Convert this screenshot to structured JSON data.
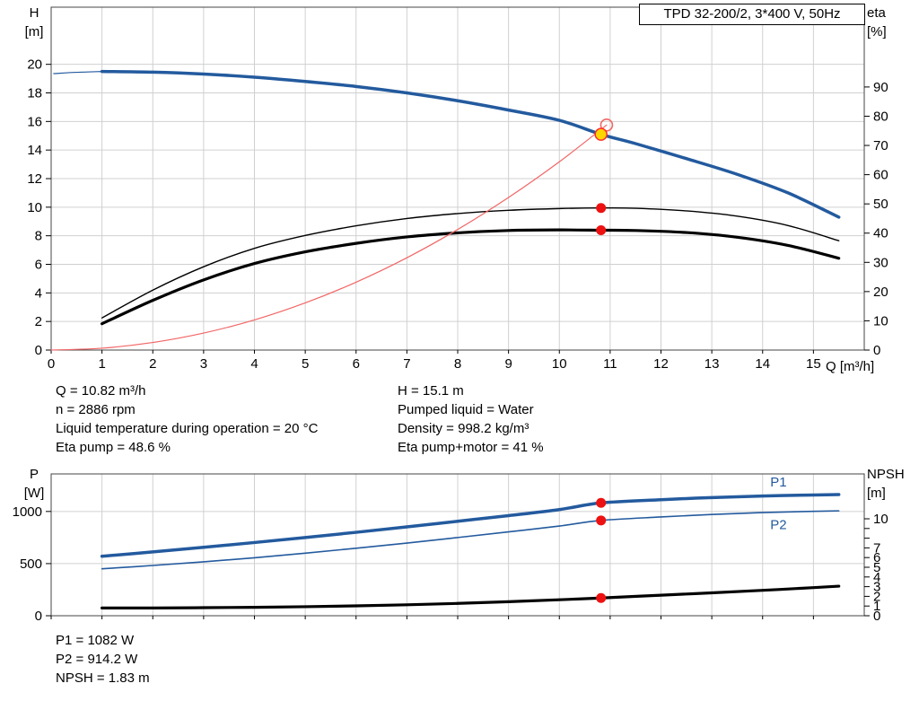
{
  "title_box": "TPD 32-200/2, 3*400 V, 50Hz",
  "axis_headers": {
    "top_left": [
      "H",
      "[m]"
    ],
    "top_right": [
      "eta",
      "[%]"
    ],
    "x": "Q [m³/h]",
    "bottom_left": [
      "P",
      "[W]"
    ],
    "bottom_right": [
      "NPSH",
      "[m]"
    ]
  },
  "info": {
    "col1": [
      "Q = 10.82 m³/h",
      "n = 2886 rpm",
      "Liquid temperature during operation = 20 °C",
      "Eta pump = 48.6 %"
    ],
    "col2": [
      "H = 15.1 m",
      "Pumped liquid = Water",
      "Density = 998.2 kg/m³",
      "Eta pump+motor = 41 %"
    ]
  },
  "results": [
    "P1 = 1082 W",
    "P2 = 914.2 W",
    "NPSH = 1.83 m"
  ],
  "colors": {
    "curve_blue": "#235a9e",
    "curve_black": "#000000",
    "curve_red": "#f26666",
    "dot_red": "#ee1111",
    "duty_yellow": "#ffd500",
    "grid": "#d0d0d0"
  },
  "chart_data": [
    {
      "type": "line",
      "title": "TPD 32-200/2, 3*400 V, 50Hz",
      "xlabel": "Q [m³/h]",
      "ylabel_left": "H [m]",
      "ylabel_right": "eta [%]",
      "xlim": [
        0,
        16
      ],
      "x_ticks": [
        0,
        1,
        2,
        3,
        4,
        5,
        6,
        7,
        8,
        9,
        10,
        11,
        12,
        13,
        14,
        15
      ],
      "x_tick_labels": true,
      "left": {
        "lim": [
          0,
          24
        ],
        "ticks": [
          0,
          2,
          4,
          6,
          8,
          10,
          12,
          14,
          16,
          18,
          20
        ]
      },
      "right": {
        "lim": [
          0,
          117.3
        ],
        "ticks": [
          0,
          10,
          20,
          30,
          40,
          50,
          60,
          70,
          80,
          90
        ]
      },
      "series": [
        {
          "name": "head-curve-low-flow",
          "axis": "left",
          "color": "#235a9e",
          "width": 1.2,
          "x": [
            0.05,
            0.5,
            1.0
          ],
          "y": [
            19.35,
            19.44,
            19.5
          ]
        },
        {
          "name": "head-curve",
          "axis": "left",
          "color": "#235a9e",
          "width": 3.5,
          "x": [
            1,
            2,
            3,
            4,
            5,
            6,
            7,
            8,
            9,
            10,
            10.82,
            11.5,
            12.5,
            13.5,
            14.5,
            15.5
          ],
          "y": [
            19.5,
            19.45,
            19.32,
            19.1,
            18.8,
            18.45,
            18.0,
            17.45,
            16.8,
            16.08,
            15.1,
            14.45,
            13.4,
            12.3,
            11.0,
            9.3
          ]
        },
        {
          "name": "eta-pump-curve",
          "axis": "right",
          "color": "#000000",
          "width": 1.4,
          "x": [
            1,
            2,
            3,
            4,
            5,
            6,
            7,
            8,
            9,
            10,
            10.82,
            11.5,
            12.5,
            13.5,
            14.5,
            15.5
          ],
          "y": [
            11,
            20.5,
            28.5,
            34.8,
            39.2,
            42.5,
            45.0,
            46.7,
            47.8,
            48.4,
            48.6,
            48.5,
            47.6,
            45.8,
            42.6,
            37.4
          ]
        },
        {
          "name": "eta-pump-motor-curve",
          "axis": "right",
          "color": "#000000",
          "width": 3.2,
          "x": [
            1,
            2,
            3,
            4,
            5,
            6,
            7,
            8,
            9,
            10,
            10.82,
            11.5,
            12.5,
            13.5,
            14.5,
            15.5
          ],
          "y": [
            9,
            17,
            24,
            29.6,
            33.6,
            36.5,
            38.7,
            40.1,
            40.9,
            41.1,
            41.0,
            40.9,
            40.2,
            38.6,
            35.8,
            31.4
          ]
        },
        {
          "name": "system-curve",
          "axis": "left",
          "color": "#f26666",
          "width": 1.2,
          "x": [
            0,
            1,
            2,
            3,
            4,
            5,
            6,
            7,
            8,
            9,
            10,
            10.93
          ],
          "y": [
            0,
            0.13,
            0.53,
            1.19,
            2.11,
            3.3,
            4.75,
            6.46,
            8.44,
            10.68,
            13.18,
            15.75
          ]
        }
      ],
      "markers": [
        {
          "name": "requested-duty-point",
          "x": 10.93,
          "y": 15.75,
          "axis": "left",
          "r": 6.5,
          "fill": "none",
          "stroke": "#f26666",
          "sw": 1.6
        },
        {
          "name": "duty-point",
          "x": 10.82,
          "y": 15.1,
          "axis": "left",
          "r": 6.5,
          "fill": "#ffd500",
          "stroke": "#ff2a2a",
          "sw": 1.5
        },
        {
          "name": "eta-pump-point",
          "x": 10.82,
          "y": 48.6,
          "axis": "right",
          "r": 5.5,
          "fill": "#ee1111",
          "stroke": "none",
          "sw": 0
        },
        {
          "name": "eta-pump-motor-point",
          "x": 10.82,
          "y": 41.0,
          "axis": "right",
          "r": 5.5,
          "fill": "#ee1111",
          "stroke": "none",
          "sw": 0
        }
      ]
    },
    {
      "type": "line",
      "title": "",
      "xlabel": "",
      "ylabel_left": "P [W]",
      "ylabel_right": "NPSH [m]",
      "xlim": [
        0,
        16
      ],
      "x_ticks": [
        0,
        1,
        2,
        3,
        4,
        5,
        6,
        7,
        8,
        9,
        10,
        11,
        12,
        13,
        14,
        15
      ],
      "x_tick_labels": false,
      "left": {
        "lim": [
          0,
          1360
        ],
        "ticks": [
          0,
          500,
          1000
        ]
      },
      "right": {
        "lim": [
          0,
          14.63
        ],
        "ticks": [
          0,
          1,
          2,
          3,
          4,
          5,
          6,
          7,
          8,
          9,
          10
        ],
        "labels": [
          "0",
          "1",
          "2",
          "3",
          "4",
          "5",
          "6",
          "7",
          "",
          "",
          "10"
        ]
      },
      "series": [
        {
          "name": "p1-curve",
          "axis": "left",
          "color": "#235a9e",
          "width": 3.5,
          "x": [
            1,
            2,
            3,
            4,
            5,
            6,
            7,
            8,
            9,
            10,
            10.82,
            12,
            13,
            14,
            15,
            15.5
          ],
          "y": [
            570,
            612,
            656,
            702,
            750,
            800,
            852,
            906,
            960,
            1018,
            1082,
            1113,
            1133,
            1148,
            1158,
            1162
          ]
        },
        {
          "name": "p2-curve",
          "axis": "left",
          "color": "#235a9e",
          "width": 1.6,
          "x": [
            1,
            2,
            3,
            4,
            5,
            6,
            7,
            8,
            9,
            10,
            10.82,
            12,
            13,
            14,
            15,
            15.5
          ],
          "y": [
            450,
            482,
            517,
            556,
            600,
            647,
            697,
            750,
            804,
            860,
            914,
            947,
            971,
            989,
            1001,
            1006
          ]
        },
        {
          "name": "npsh-curve",
          "axis": "right",
          "color": "#000000",
          "width": 3.2,
          "x": [
            1,
            2,
            3,
            4,
            5,
            6,
            7,
            8,
            9,
            10,
            10.82,
            12,
            13,
            14,
            15,
            15.5
          ],
          "y": [
            0.8,
            0.8,
            0.83,
            0.87,
            0.93,
            1.02,
            1.13,
            1.27,
            1.45,
            1.65,
            1.83,
            2.12,
            2.36,
            2.62,
            2.9,
            3.05
          ]
        }
      ],
      "markers": [
        {
          "name": "p1-point",
          "x": 10.82,
          "y": 1082,
          "axis": "left",
          "r": 5.5,
          "fill": "#ee1111",
          "stroke": "none",
          "sw": 0
        },
        {
          "name": "p2-point",
          "x": 10.82,
          "y": 914,
          "axis": "left",
          "r": 5.5,
          "fill": "#ee1111",
          "stroke": "none",
          "sw": 0
        },
        {
          "name": "npsh-point",
          "x": 10.82,
          "y": 1.83,
          "axis": "right",
          "r": 5.5,
          "fill": "#ee1111",
          "stroke": "none",
          "sw": 0
        }
      ],
      "labels": [
        {
          "text": "P1",
          "x": 14.15,
          "y": 1240,
          "axis": "left",
          "color": "#235a9e"
        },
        {
          "text": "P2",
          "x": 14.15,
          "y": 830,
          "axis": "left",
          "color": "#235a9e"
        }
      ]
    }
  ]
}
